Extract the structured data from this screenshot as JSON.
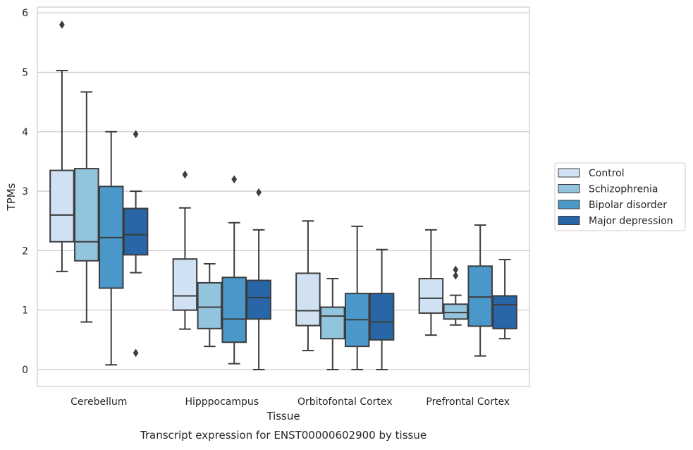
{
  "chart_data": {
    "type": "box",
    "title": "",
    "caption": "Transcript expression for ENST00000602900 by tissue",
    "xlabel": "Tissue",
    "ylabel": "TPMs",
    "ylim": [
      -0.28,
      6.1
    ],
    "yticks": [
      0,
      1,
      2,
      3,
      4,
      5,
      6
    ],
    "grid": "horizontal",
    "legend_position": "right",
    "categories": [
      "Cerebellum",
      "Hipppocampus",
      "Orbitofontal Cortex",
      "Prefrontal Cortex"
    ],
    "series": [
      {
        "name": "Control",
        "color": "#cfe1f2",
        "boxes": [
          {
            "whislo": 1.65,
            "q1": 2.15,
            "med": 2.6,
            "q3": 3.35,
            "whishi": 5.03,
            "fliers": [
              5.8
            ]
          },
          {
            "whislo": 0.68,
            "q1": 1.0,
            "med": 1.24,
            "q3": 1.86,
            "whishi": 2.72,
            "fliers": [
              3.28
            ]
          },
          {
            "whislo": 0.32,
            "q1": 0.74,
            "med": 0.99,
            "q3": 1.62,
            "whishi": 2.5,
            "fliers": []
          },
          {
            "whislo": 0.58,
            "q1": 0.95,
            "med": 1.2,
            "q3": 1.53,
            "whishi": 2.35,
            "fliers": []
          }
        ]
      },
      {
        "name": "Schizophrenia",
        "color": "#93c4de",
        "boxes": [
          {
            "whislo": 0.8,
            "q1": 1.83,
            "med": 2.15,
            "q3": 3.38,
            "whishi": 4.67,
            "fliers": []
          },
          {
            "whislo": 0.39,
            "q1": 0.69,
            "med": 1.05,
            "q3": 1.46,
            "whishi": 1.78,
            "fliers": []
          },
          {
            "whislo": 0.0,
            "q1": 0.52,
            "med": 0.9,
            "q3": 1.05,
            "whishi": 1.53,
            "fliers": []
          },
          {
            "whislo": 0.75,
            "q1": 0.85,
            "med": 0.96,
            "q3": 1.1,
            "whishi": 1.25,
            "fliers": [
              1.58,
              1.68
            ]
          }
        ]
      },
      {
        "name": "Bipolar disorder",
        "color": "#4a98c9",
        "boxes": [
          {
            "whislo": 0.08,
            "q1": 1.37,
            "med": 2.22,
            "q3": 3.08,
            "whishi": 4.0,
            "fliers": []
          },
          {
            "whislo": 0.1,
            "q1": 0.46,
            "med": 0.85,
            "q3": 1.55,
            "whishi": 2.47,
            "fliers": [
              3.2
            ]
          },
          {
            "whislo": 0.0,
            "q1": 0.39,
            "med": 0.84,
            "q3": 1.28,
            "whishi": 2.41,
            "fliers": []
          },
          {
            "whislo": 0.23,
            "q1": 0.73,
            "med": 1.22,
            "q3": 1.74,
            "whishi": 2.43,
            "fliers": []
          }
        ]
      },
      {
        "name": "Major depression",
        "color": "#2866a8",
        "boxes": [
          {
            "whislo": 1.63,
            "q1": 1.93,
            "med": 2.27,
            "q3": 2.71,
            "whishi": 3.0,
            "fliers": [
              0.28,
              3.96
            ]
          },
          {
            "whislo": 0.0,
            "q1": 0.85,
            "med": 1.21,
            "q3": 1.5,
            "whishi": 2.35,
            "fliers": [
              2.98
            ]
          },
          {
            "whislo": 0.0,
            "q1": 0.5,
            "med": 0.8,
            "q3": 1.28,
            "whishi": 2.02,
            "fliers": []
          },
          {
            "whislo": 0.52,
            "q1": 0.69,
            "med": 1.09,
            "q3": 1.24,
            "whishi": 1.85,
            "fliers": []
          }
        ]
      }
    ]
  }
}
